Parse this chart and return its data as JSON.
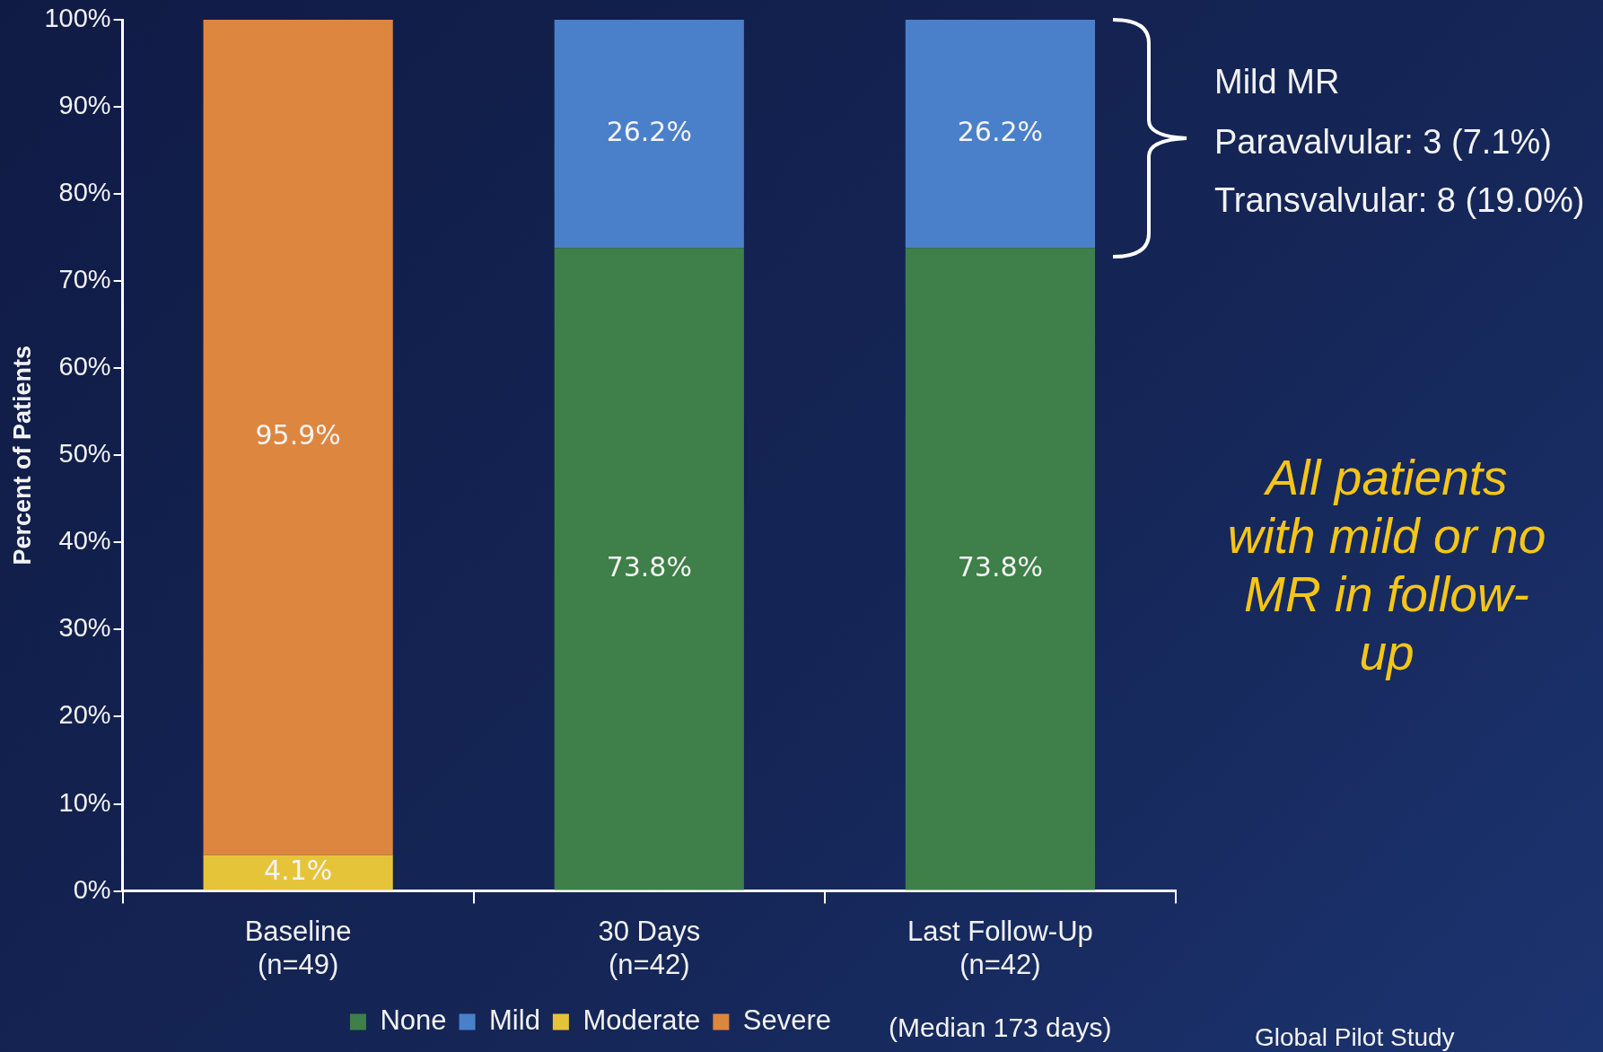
{
  "chart_data": {
    "type": "bar",
    "stacked": true,
    "ylabel": "Percent of Patients",
    "categories": [
      "Baseline (n=49)",
      "30 Days (n=42)",
      "Last Follow-Up (n=42)"
    ],
    "series": [
      {
        "name": "None",
        "color": "#3f7f49",
        "values": [
          null,
          73.8,
          73.8
        ],
        "value_labels": [
          null,
          "73.8%",
          "73.8%"
        ]
      },
      {
        "name": "Mild",
        "color": "#4a80c9",
        "values": [
          null,
          26.2,
          26.2
        ],
        "value_labels": [
          null,
          "26.2%",
          "26.2%"
        ]
      },
      {
        "name": "Moderate",
        "color": "#e6c43a",
        "values": [
          4.1,
          null,
          null
        ],
        "value_labels": [
          "4.1%",
          null,
          null
        ]
      },
      {
        "name": "Severe",
        "color": "#dd8640",
        "values": [
          95.9,
          null,
          null
        ],
        "value_labels": [
          "95.9%",
          null,
          null
        ]
      }
    ],
    "ylim": [
      0,
      100
    ],
    "yticks": [
      {
        "value": 0,
        "label": "0%"
      },
      {
        "value": 10,
        "label": "10%"
      },
      {
        "value": 20,
        "label": "20%"
      },
      {
        "value": 30,
        "label": "30%"
      },
      {
        "value": 40,
        "label": "40%"
      },
      {
        "value": 50,
        "label": "50%"
      },
      {
        "value": 60,
        "label": "60%"
      },
      {
        "value": 70,
        "label": "70%"
      },
      {
        "value": 80,
        "label": "80%"
      },
      {
        "value": 90,
        "label": "90%"
      },
      {
        "value": 100,
        "label": "100%"
      }
    ],
    "grid": false,
    "legend": "bottom",
    "annotations": [
      "Mild MR",
      "Paravalvular: 3 (7.1%)",
      "Transvalvular: 8 (19.0%)",
      "All patients with mild or no MR in follow-up",
      "(Median 173 days)",
      "Global Pilot Study"
    ]
  }
}
